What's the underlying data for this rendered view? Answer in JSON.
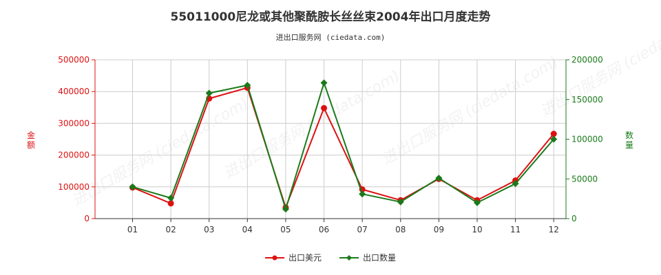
{
  "title": "55011000尼龙或其他聚酰胺长丝丝束2004年出口月度走势",
  "subtitle": "进出口服务网 (ciedata.com)",
  "watermark": "进出口服务网 (ciedata.com)",
  "colors": {
    "amount": "#dd1111",
    "quantity": "#1a7a1a",
    "grid": "#cccccc",
    "axis": "#333333"
  },
  "chart_data": {
    "type": "line",
    "categories": [
      "01",
      "02",
      "03",
      "04",
      "05",
      "06",
      "07",
      "08",
      "09",
      "10",
      "11",
      "12"
    ],
    "left_axis": {
      "label": "金额",
      "ylim": [
        0,
        500000
      ],
      "ticks": [
        0,
        100000,
        200000,
        300000,
        400000,
        500000
      ]
    },
    "right_axis": {
      "label": "数量",
      "ylim": [
        0,
        200000
      ],
      "ticks": [
        0,
        50000,
        100000,
        150000,
        200000
      ]
    },
    "series": [
      {
        "name": "出口美元",
        "axis": "left",
        "color": "#dd1111",
        "values": [
          98000,
          48000,
          378000,
          412000,
          35000,
          348000,
          92000,
          58000,
          125000,
          58000,
          120000,
          267000
        ]
      },
      {
        "name": "出口数量",
        "axis": "right",
        "color": "#1a7a1a",
        "values": [
          40000,
          26000,
          158000,
          168000,
          12000,
          171000,
          31000,
          21000,
          51000,
          20000,
          44000,
          100000
        ]
      }
    ],
    "grid": true,
    "legend_position": "bottom-center"
  }
}
